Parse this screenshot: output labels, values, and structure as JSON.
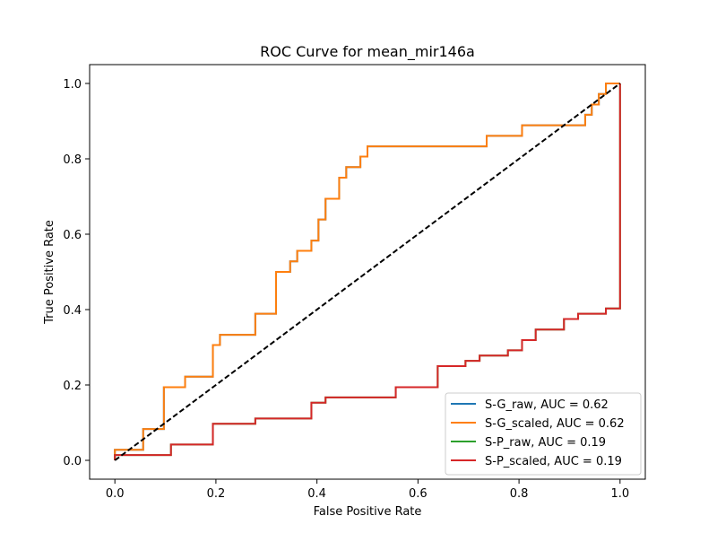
{
  "chart_data": {
    "type": "line",
    "title": "ROC Curve for mean_mir146a",
    "xlabel": "False Positive Rate",
    "ylabel": "True Positive Rate",
    "xlim": [
      -0.05,
      1.05
    ],
    "ylim": [
      -0.05,
      1.05
    ],
    "x_ticks": [
      0.0,
      0.2,
      0.4,
      0.6,
      0.8,
      1.0
    ],
    "y_ticks": [
      0.0,
      0.2,
      0.4,
      0.6,
      0.8,
      1.0
    ],
    "x_tick_labels": [
      "0.0",
      "0.2",
      "0.4",
      "0.6",
      "0.8",
      "1.0"
    ],
    "y_tick_labels": [
      "0.0",
      "0.2",
      "0.4",
      "0.6",
      "0.8",
      "1.0"
    ],
    "grid": false,
    "legend_position": "lower-right",
    "diagonal": {
      "x": [
        0,
        1
      ],
      "y": [
        0,
        1
      ],
      "color": "#000000",
      "style": "dashed"
    },
    "series": [
      {
        "name": "S-G_raw, AUC = 0.62",
        "color": "#1f77b4",
        "x": [
          0,
          0,
          0.056,
          0.056,
          0.097,
          0.097,
          0.139,
          0.139,
          0.194,
          0.194,
          0.208,
          0.208,
          0.278,
          0.278,
          0.319,
          0.319,
          0.347,
          0.347,
          0.361,
          0.361,
          0.389,
          0.389,
          0.403,
          0.403,
          0.417,
          0.417,
          0.444,
          0.444,
          0.458,
          0.458,
          0.486,
          0.486,
          0.5,
          0.5,
          0.736,
          0.736,
          0.806,
          0.806,
          0.931,
          0.931,
          0.944,
          0.944,
          0.958,
          0.958,
          0.972,
          0.972,
          1.0,
          1.0
        ],
        "y": [
          0,
          0.028,
          0.028,
          0.083,
          0.083,
          0.194,
          0.194,
          0.222,
          0.222,
          0.306,
          0.306,
          0.333,
          0.333,
          0.389,
          0.389,
          0.5,
          0.5,
          0.528,
          0.528,
          0.556,
          0.556,
          0.583,
          0.583,
          0.639,
          0.639,
          0.694,
          0.694,
          0.75,
          0.75,
          0.778,
          0.778,
          0.806,
          0.806,
          0.833,
          0.833,
          0.861,
          0.861,
          0.889,
          0.889,
          0.917,
          0.917,
          0.944,
          0.944,
          0.972,
          0.972,
          1.0,
          1.0,
          1.0
        ]
      },
      {
        "name": "S-G_scaled, AUC = 0.62",
        "color": "#ff7f0e",
        "x": [
          0,
          0,
          0.056,
          0.056,
          0.097,
          0.097,
          0.139,
          0.139,
          0.194,
          0.194,
          0.208,
          0.208,
          0.278,
          0.278,
          0.319,
          0.319,
          0.347,
          0.347,
          0.361,
          0.361,
          0.389,
          0.389,
          0.403,
          0.403,
          0.417,
          0.417,
          0.444,
          0.444,
          0.458,
          0.458,
          0.486,
          0.486,
          0.5,
          0.5,
          0.736,
          0.736,
          0.806,
          0.806,
          0.931,
          0.931,
          0.944,
          0.944,
          0.958,
          0.958,
          0.972,
          0.972,
          1.0,
          1.0
        ],
        "y": [
          0,
          0.028,
          0.028,
          0.083,
          0.083,
          0.194,
          0.194,
          0.222,
          0.222,
          0.306,
          0.306,
          0.333,
          0.333,
          0.389,
          0.389,
          0.5,
          0.5,
          0.528,
          0.528,
          0.556,
          0.556,
          0.583,
          0.583,
          0.639,
          0.639,
          0.694,
          0.694,
          0.75,
          0.75,
          0.778,
          0.778,
          0.806,
          0.806,
          0.833,
          0.833,
          0.861,
          0.861,
          0.889,
          0.889,
          0.917,
          0.917,
          0.944,
          0.944,
          0.972,
          0.972,
          1.0,
          1.0,
          1.0
        ]
      },
      {
        "name": "S-P_raw, AUC = 0.19",
        "color": "#2ca02c",
        "x": [
          0,
          0,
          0.111,
          0.111,
          0.194,
          0.194,
          0.278,
          0.278,
          0.389,
          0.389,
          0.417,
          0.417,
          0.556,
          0.556,
          0.639,
          0.639,
          0.694,
          0.694,
          0.722,
          0.722,
          0.778,
          0.778,
          0.806,
          0.806,
          0.833,
          0.833,
          0.889,
          0.889,
          0.917,
          0.917,
          0.972,
          0.972,
          1.0,
          1.0
        ],
        "y": [
          0,
          0.014,
          0.014,
          0.042,
          0.042,
          0.097,
          0.097,
          0.111,
          0.111,
          0.153,
          0.153,
          0.167,
          0.167,
          0.194,
          0.194,
          0.25,
          0.25,
          0.264,
          0.264,
          0.278,
          0.278,
          0.292,
          0.292,
          0.319,
          0.319,
          0.347,
          0.347,
          0.375,
          0.375,
          0.389,
          0.389,
          0.403,
          0.403,
          1.0
        ]
      },
      {
        "name": "S-P_scaled, AUC = 0.19",
        "color": "#d62728",
        "x": [
          0,
          0,
          0.111,
          0.111,
          0.194,
          0.194,
          0.278,
          0.278,
          0.389,
          0.389,
          0.417,
          0.417,
          0.556,
          0.556,
          0.639,
          0.639,
          0.694,
          0.694,
          0.722,
          0.722,
          0.778,
          0.778,
          0.806,
          0.806,
          0.833,
          0.833,
          0.889,
          0.889,
          0.917,
          0.917,
          0.972,
          0.972,
          1.0,
          1.0
        ],
        "y": [
          0,
          0.014,
          0.014,
          0.042,
          0.042,
          0.097,
          0.097,
          0.111,
          0.111,
          0.153,
          0.153,
          0.167,
          0.167,
          0.194,
          0.194,
          0.25,
          0.25,
          0.264,
          0.264,
          0.278,
          0.278,
          0.292,
          0.292,
          0.319,
          0.319,
          0.347,
          0.347,
          0.375,
          0.375,
          0.389,
          0.389,
          0.403,
          0.403,
          1.0
        ]
      }
    ]
  }
}
